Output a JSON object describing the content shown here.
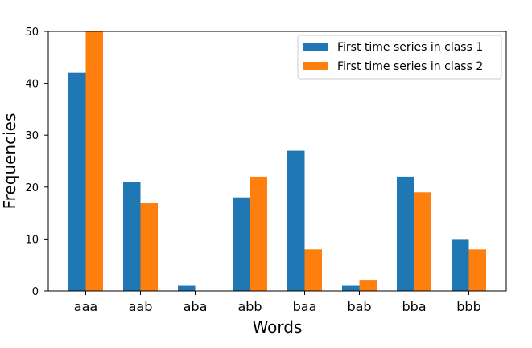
{
  "chart_data": {
    "type": "bar",
    "categories": [
      "aaa",
      "aab",
      "aba",
      "abb",
      "baa",
      "bab",
      "bba",
      "bbb"
    ],
    "series": [
      {
        "name": "First time series in class 1",
        "color": "#1f77b4",
        "values": [
          42,
          21,
          1,
          18,
          27,
          1,
          22,
          10
        ]
      },
      {
        "name": "First time series in class 2",
        "color": "#ff7f0e",
        "values": [
          50,
          17,
          0,
          22,
          8,
          2,
          19,
          8
        ]
      }
    ],
    "title": "",
    "xlabel": "Words",
    "ylabel": "Frequencies",
    "ylim": [
      0,
      50
    ],
    "yticks": [
      0,
      10,
      20,
      30,
      40,
      50
    ],
    "grid": false,
    "legend_position": "top-right"
  }
}
